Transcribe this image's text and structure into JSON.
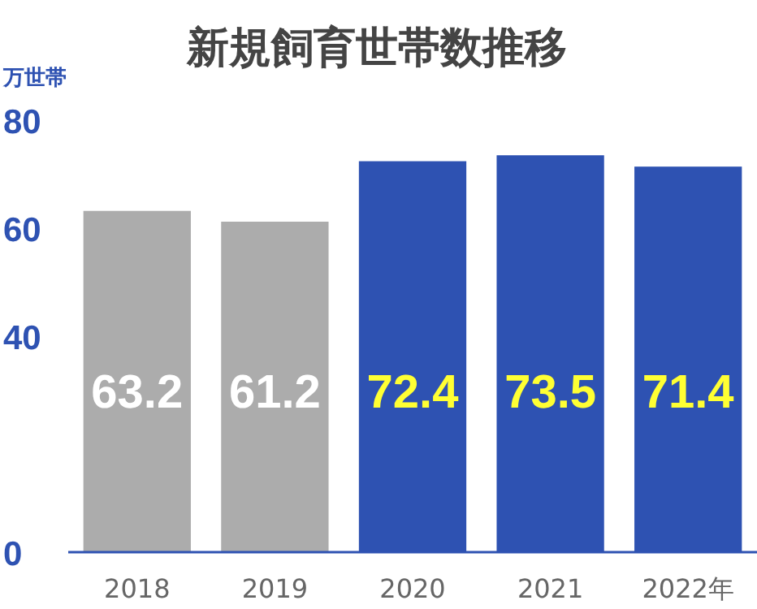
{
  "chart_data": {
    "type": "bar",
    "title": "新規飼育世帯数推移",
    "ylabel": "万世帯",
    "categories": [
      "2018",
      "2019",
      "2020",
      "2021",
      "2022年"
    ],
    "values": [
      63.2,
      61.2,
      72.4,
      73.5,
      71.4
    ],
    "colors": [
      "#acacac",
      "#acacac",
      "#2e52b2",
      "#2e52b2",
      "#2e52b2"
    ],
    "ylim": [
      0,
      80
    ],
    "yticks": [
      0,
      40,
      60,
      80
    ],
    "data_labels": true,
    "grid": false
  }
}
